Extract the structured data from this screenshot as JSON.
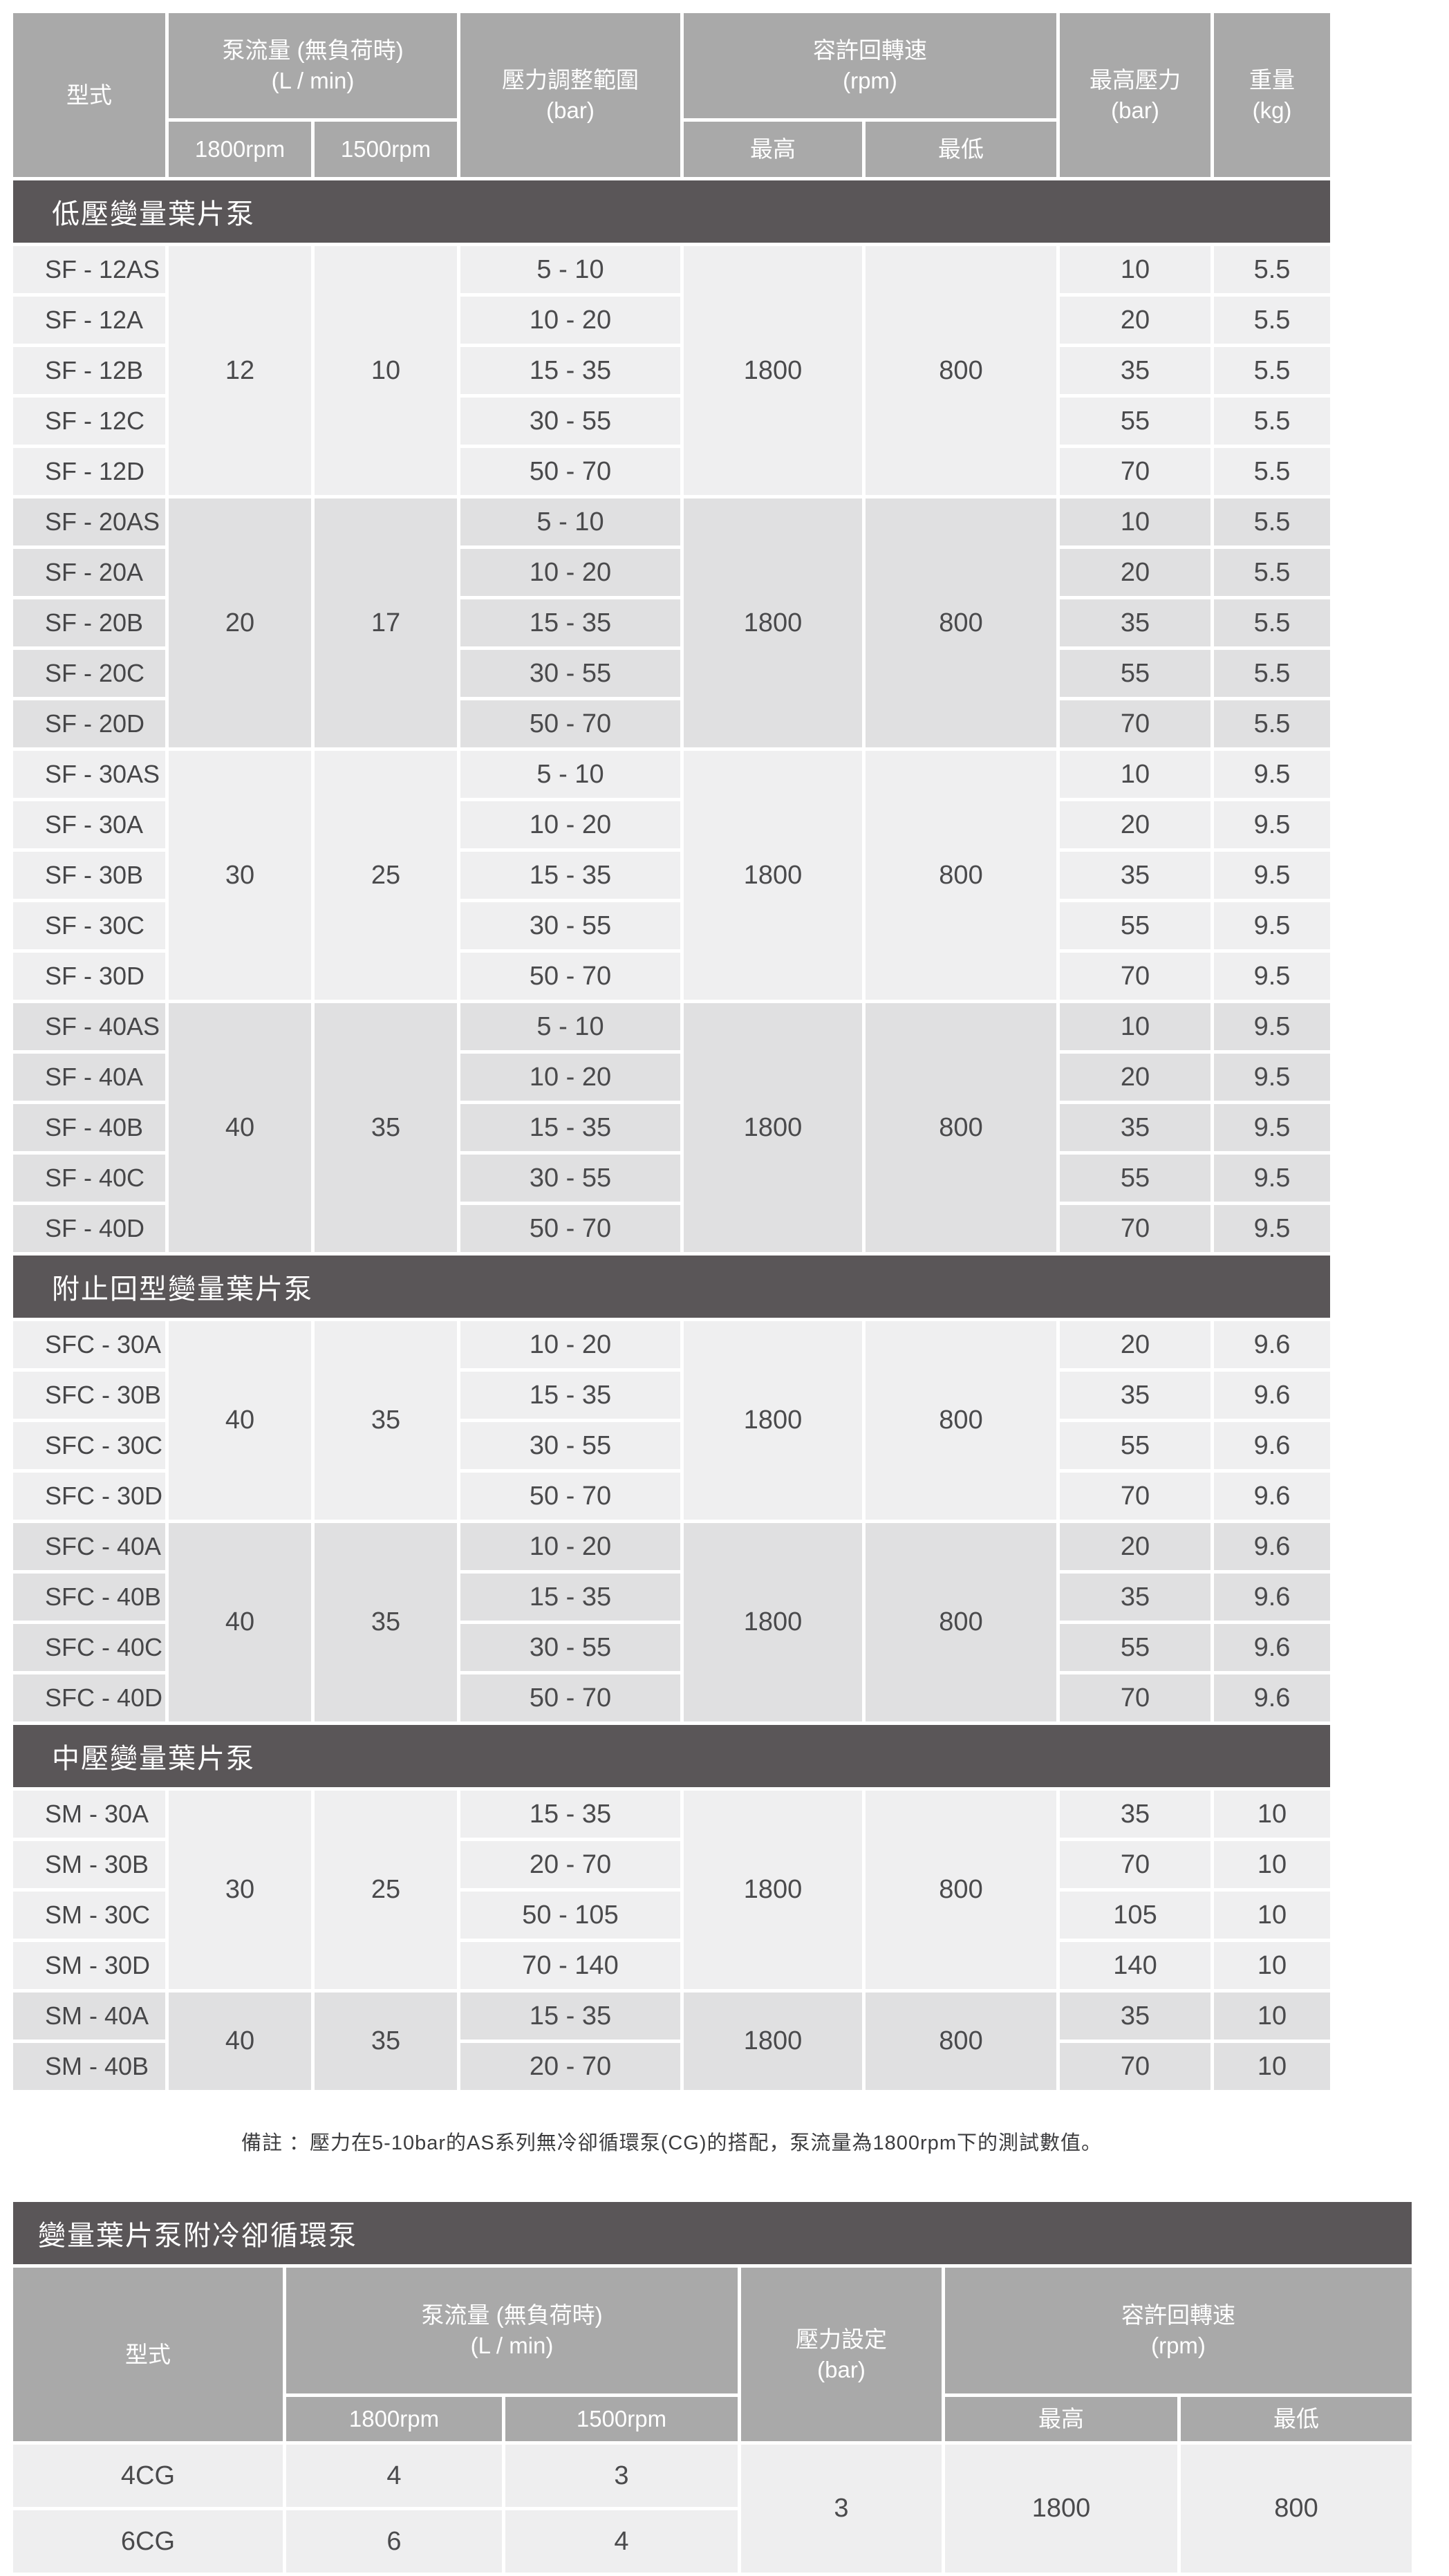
{
  "colors": {
    "header_bg": "#a9a9a9",
    "section_bar_bg": "#5a5658",
    "row_light": "#efeff0",
    "row_dark": "#e0e0e1",
    "row_table2": "#eeeeef",
    "text": "#4a4a4c",
    "header_text": "#ffffff",
    "page_bg": "#ffffff"
  },
  "table1": {
    "header": {
      "model": "型式",
      "flow_title": "泵流量 (無負荷時)",
      "flow_unit": "(L / min)",
      "flow_sub": [
        "1800rpm",
        "1500rpm"
      ],
      "pressure_range_title": "壓力調整範圍",
      "pressure_range_unit": "(bar)",
      "speed_title": "容許回轉速",
      "speed_unit": "(rpm)",
      "speed_sub": [
        "最高",
        "最低"
      ],
      "max_pressure_title": "最高壓力",
      "max_pressure_unit": "(bar)",
      "weight_title": "重量",
      "weight_unit": "(kg)"
    },
    "sections": [
      {
        "title": "低壓變量葉片泵",
        "groups": [
          {
            "shade": "light",
            "flow_1800": "12",
            "flow_1500": "10",
            "speed_max": "1800",
            "speed_min": "800",
            "rows": [
              {
                "model": "SF - 12AS",
                "range": "5 - 10",
                "max_pressure": "10",
                "weight": "5.5"
              },
              {
                "model": "SF - 12A",
                "range": "10 - 20",
                "max_pressure": "20",
                "weight": "5.5"
              },
              {
                "model": "SF - 12B",
                "range": "15 - 35",
                "max_pressure": "35",
                "weight": "5.5"
              },
              {
                "model": "SF - 12C",
                "range": "30 - 55",
                "max_pressure": "55",
                "weight": "5.5"
              },
              {
                "model": "SF - 12D",
                "range": "50 - 70",
                "max_pressure": "70",
                "weight": "5.5"
              }
            ]
          },
          {
            "shade": "dark",
            "flow_1800": "20",
            "flow_1500": "17",
            "speed_max": "1800",
            "speed_min": "800",
            "rows": [
              {
                "model": "SF - 20AS",
                "range": "5 - 10",
                "max_pressure": "10",
                "weight": "5.5"
              },
              {
                "model": "SF - 20A",
                "range": "10 - 20",
                "max_pressure": "20",
                "weight": "5.5"
              },
              {
                "model": "SF - 20B",
                "range": "15 - 35",
                "max_pressure": "35",
                "weight": "5.5"
              },
              {
                "model": "SF - 20C",
                "range": "30 - 55",
                "max_pressure": "55",
                "weight": "5.5"
              },
              {
                "model": "SF - 20D",
                "range": "50 - 70",
                "max_pressure": "70",
                "weight": "5.5"
              }
            ]
          },
          {
            "shade": "light",
            "flow_1800": "30",
            "flow_1500": "25",
            "speed_max": "1800",
            "speed_min": "800",
            "rows": [
              {
                "model": "SF - 30AS",
                "range": "5 - 10",
                "max_pressure": "10",
                "weight": "9.5"
              },
              {
                "model": "SF - 30A",
                "range": "10 - 20",
                "max_pressure": "20",
                "weight": "9.5"
              },
              {
                "model": "SF - 30B",
                "range": "15 - 35",
                "max_pressure": "35",
                "weight": "9.5"
              },
              {
                "model": "SF - 30C",
                "range": "30 - 55",
                "max_pressure": "55",
                "weight": "9.5"
              },
              {
                "model": "SF - 30D",
                "range": "50 - 70",
                "max_pressure": "70",
                "weight": "9.5"
              }
            ]
          },
          {
            "shade": "dark",
            "flow_1800": "40",
            "flow_1500": "35",
            "speed_max": "1800",
            "speed_min": "800",
            "rows": [
              {
                "model": "SF - 40AS",
                "range": "5 - 10",
                "max_pressure": "10",
                "weight": "9.5"
              },
              {
                "model": "SF - 40A",
                "range": "10 - 20",
                "max_pressure": "20",
                "weight": "9.5"
              },
              {
                "model": "SF - 40B",
                "range": "15 - 35",
                "max_pressure": "35",
                "weight": "9.5"
              },
              {
                "model": "SF - 40C",
                "range": "30 - 55",
                "max_pressure": "55",
                "weight": "9.5"
              },
              {
                "model": "SF - 40D",
                "range": "50 - 70",
                "max_pressure": "70",
                "weight": "9.5"
              }
            ]
          }
        ]
      },
      {
        "title": "附止回型變量葉片泵",
        "groups": [
          {
            "shade": "light",
            "flow_1800": "40",
            "flow_1500": "35",
            "speed_max": "1800",
            "speed_min": "800",
            "rows": [
              {
                "model": "SFC - 30A",
                "range": "10 - 20",
                "max_pressure": "20",
                "weight": "9.6"
              },
              {
                "model": "SFC - 30B",
                "range": "15 - 35",
                "max_pressure": "35",
                "weight": "9.6"
              },
              {
                "model": "SFC - 30C",
                "range": "30 - 55",
                "max_pressure": "55",
                "weight": "9.6"
              },
              {
                "model": "SFC - 30D",
                "range": "50 - 70",
                "max_pressure": "70",
                "weight": "9.6"
              }
            ]
          },
          {
            "shade": "dark",
            "flow_1800": "40",
            "flow_1500": "35",
            "speed_max": "1800",
            "speed_min": "800",
            "rows": [
              {
                "model": "SFC - 40A",
                "range": "10 - 20",
                "max_pressure": "20",
                "weight": "9.6"
              },
              {
                "model": "SFC - 40B",
                "range": "15 - 35",
                "max_pressure": "35",
                "weight": "9.6"
              },
              {
                "model": "SFC - 40C",
                "range": "30 - 55",
                "max_pressure": "55",
                "weight": "9.6"
              },
              {
                "model": "SFC - 40D",
                "range": "50 - 70",
                "max_pressure": "70",
                "weight": "9.6"
              }
            ]
          }
        ]
      },
      {
        "title": "中壓變量葉片泵",
        "groups": [
          {
            "shade": "light",
            "flow_1800": "30",
            "flow_1500": "25",
            "speed_max": "1800",
            "speed_min": "800",
            "rows": [
              {
                "model": "SM - 30A",
                "range": "15 - 35",
                "max_pressure": "35",
                "weight": "10"
              },
              {
                "model": "SM - 30B",
                "range": "20 - 70",
                "max_pressure": "70",
                "weight": "10"
              },
              {
                "model": "SM - 30C",
                "range": "50 - 105",
                "max_pressure": "105",
                "weight": "10"
              },
              {
                "model": "SM - 30D",
                "range": "70 - 140",
                "max_pressure": "140",
                "weight": "10"
              }
            ]
          },
          {
            "shade": "dark",
            "flow_1800": "40",
            "flow_1500": "35",
            "speed_max": "1800",
            "speed_min": "800",
            "rows": [
              {
                "model": "SM - 40A",
                "range": "15 - 35",
                "max_pressure": "35",
                "weight": "10"
              },
              {
                "model": "SM - 40B",
                "range": "20 - 70",
                "max_pressure": "70",
                "weight": "10"
              }
            ]
          }
        ]
      }
    ]
  },
  "note": {
    "text": "備註 ：壓力在5-10bar的AS系列無冷卻循環泵(CG)的搭配，泵流量為1800rpm下的測試數值。"
  },
  "table2": {
    "section_title": "變量葉片泵附冷卻循環泵",
    "header": {
      "model": "型式",
      "flow_title": "泵流量 (無負荷時)",
      "flow_unit": "(L / min)",
      "flow_sub": [
        "1800rpm",
        "1500rpm"
      ],
      "pressure_set_title": "壓力設定",
      "pressure_set_unit": "(bar)",
      "speed_title": "容許回轉速",
      "speed_unit": "(rpm)",
      "speed_sub": [
        "最高",
        "最低"
      ]
    },
    "rows": [
      {
        "model": "4CG",
        "flow_1800": "4",
        "flow_1500": "3"
      },
      {
        "model": "6CG",
        "flow_1800": "6",
        "flow_1500": "4"
      }
    ],
    "merged": {
      "pressure_set": "3",
      "speed_max": "1800",
      "speed_min": "800"
    }
  }
}
